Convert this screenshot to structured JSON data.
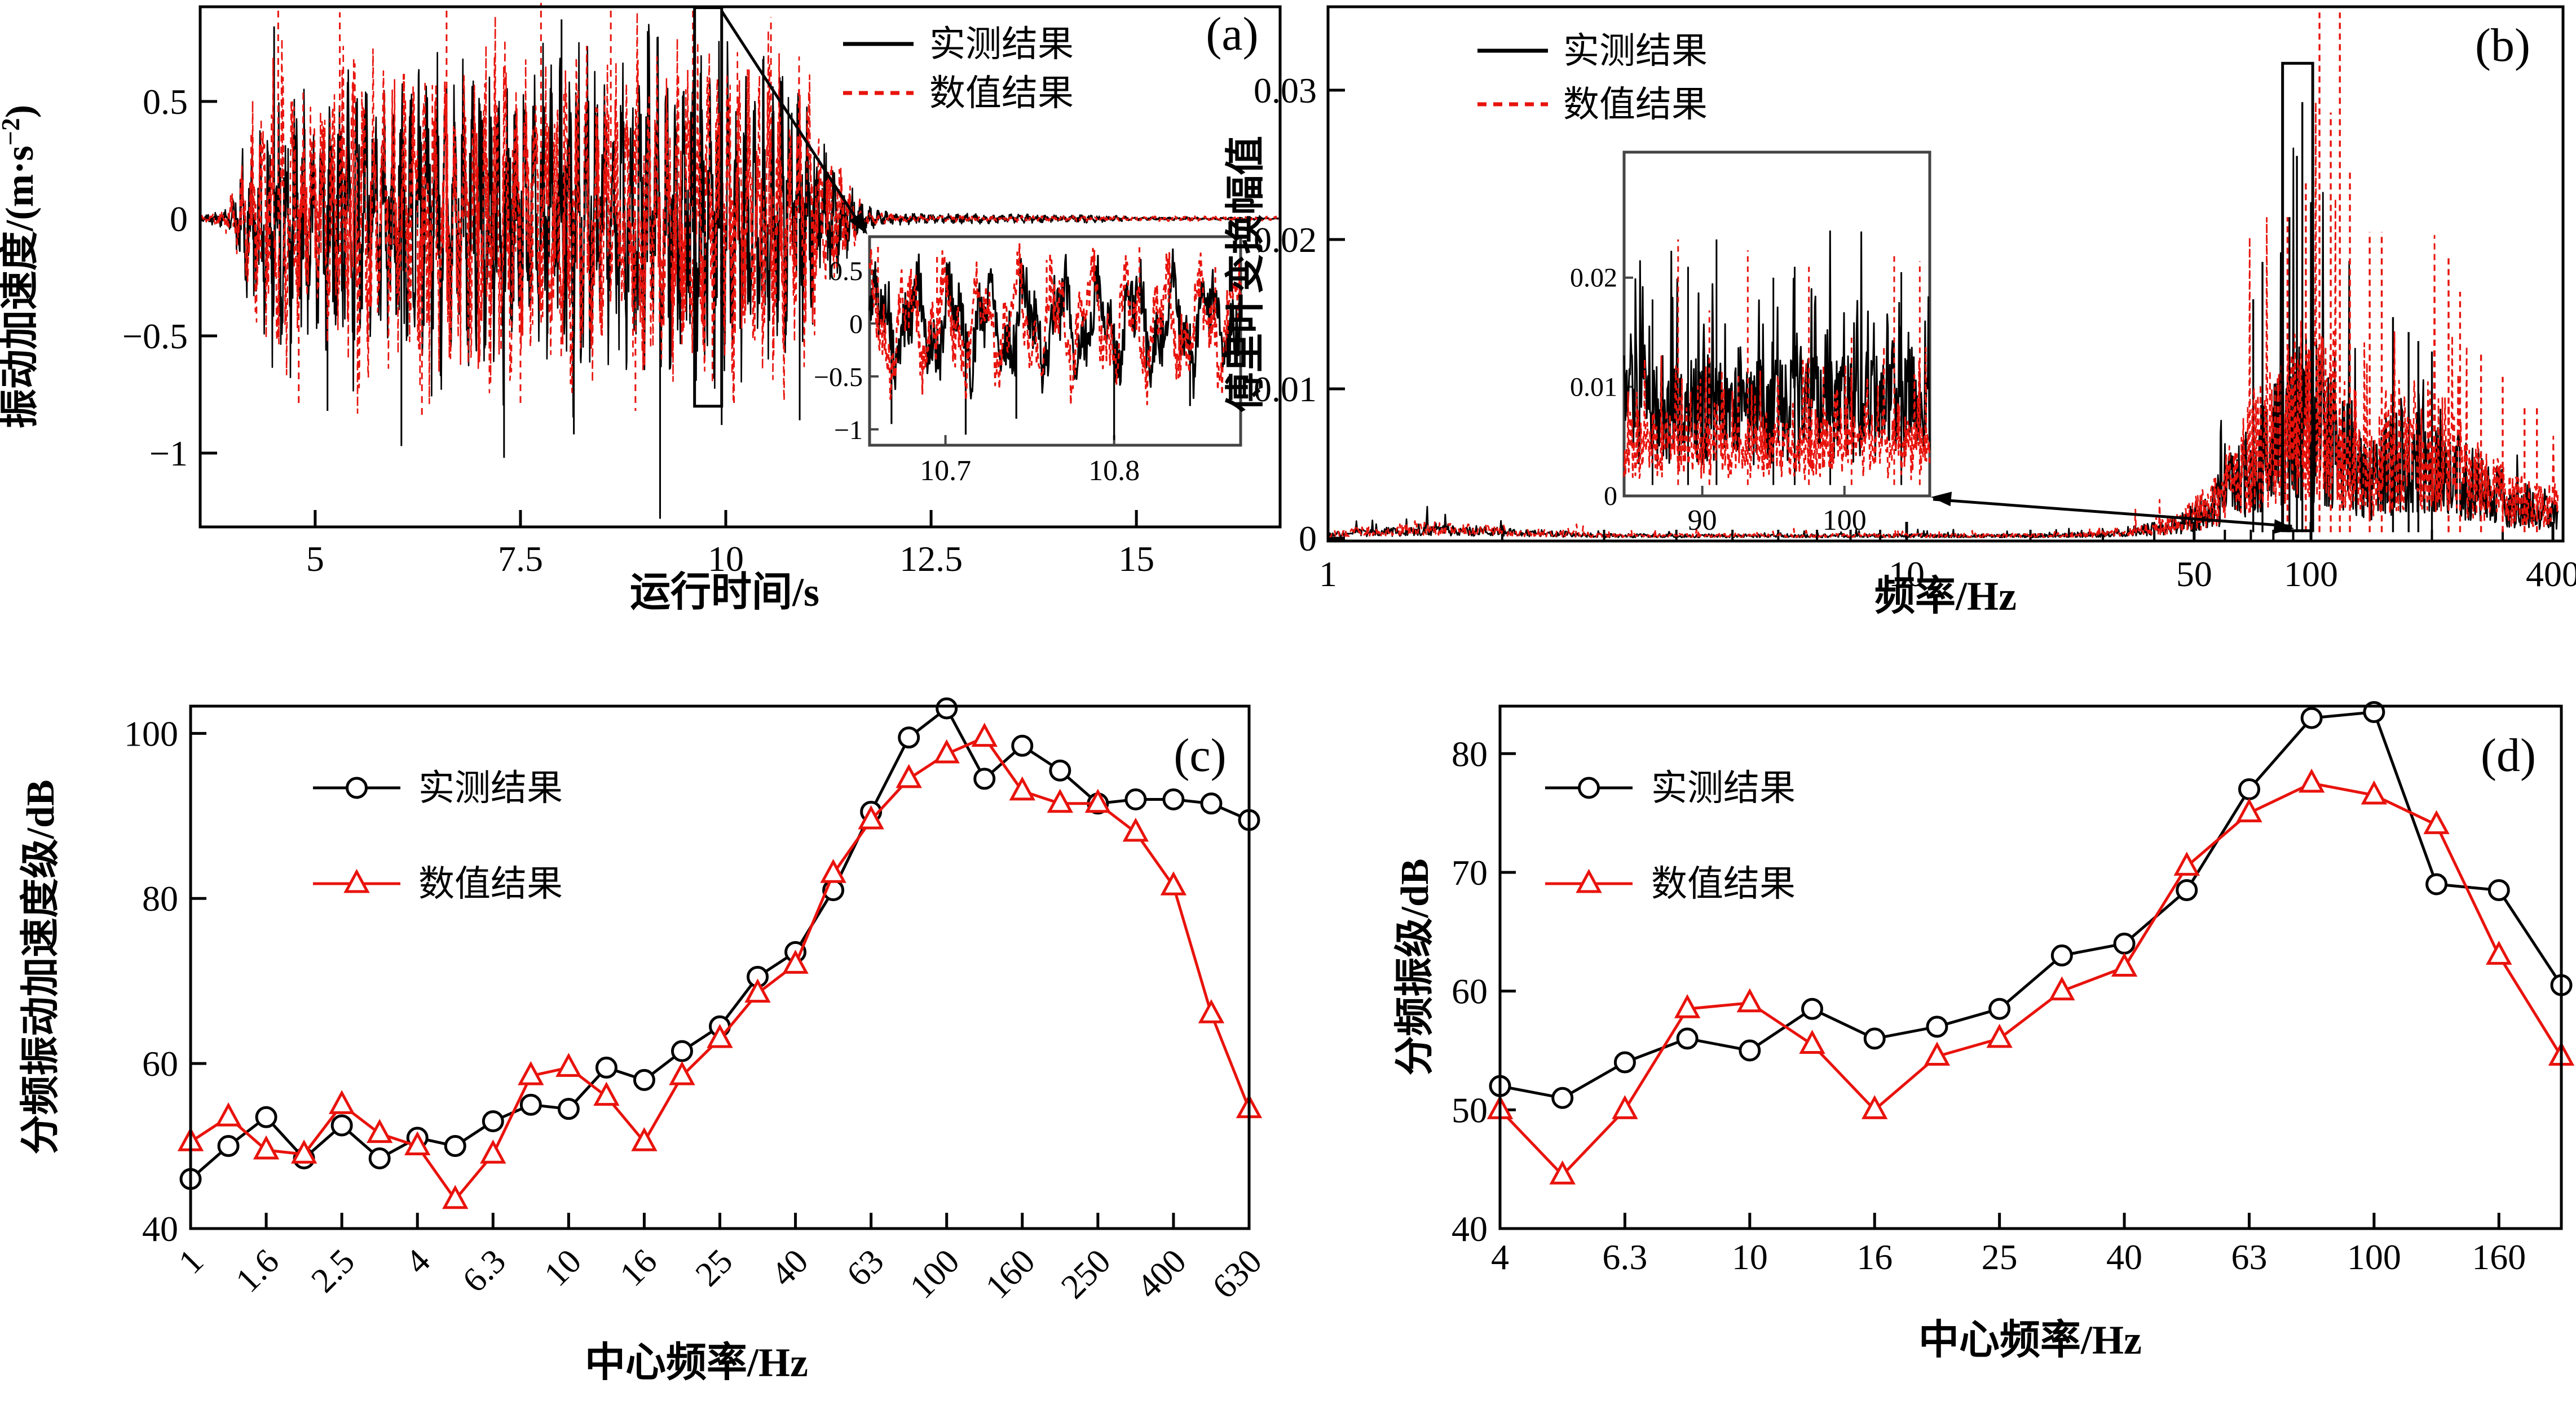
{
  "figure": {
    "background": "#ffffff",
    "color_measured": "#000000",
    "color_numerical": "#e8130c",
    "legend_measured": "实测结果",
    "legend_numerical": "数值结果"
  },
  "chart_data": [
    {
      "id": "a",
      "type": "line",
      "panel_letter": "(a)",
      "xlabel": "运行时间/s",
      "ylabel_main": "振动加速度/(m·s",
      "ylabel_sup": "−2",
      "ylabel_close": ")",
      "xlim": [
        3.6,
        16.75
      ],
      "ylim": [
        -1.315,
        0.9
      ],
      "xticks": [
        5,
        7.5,
        10,
        12.5,
        15
      ],
      "yticks": [
        0.5,
        0,
        -0.5,
        -1
      ],
      "legend": [
        "实测结果",
        "数值结果"
      ],
      "series_styles": [
        {
          "name": "实测结果",
          "style": "solid",
          "color": "#000000"
        },
        {
          "name": "数值结果",
          "style": "dashed",
          "color": "#e8130c"
        }
      ],
      "envelope_measured": [
        [
          3.6,
          0.01
        ],
        [
          3.95,
          0.04
        ],
        [
          4.25,
          0.38
        ],
        [
          4.6,
          0.58
        ],
        [
          5.0,
          0.45
        ],
        [
          5.45,
          0.6
        ],
        [
          5.85,
          0.47
        ],
        [
          6.3,
          0.63
        ],
        [
          6.75,
          0.49
        ],
        [
          7.2,
          0.62
        ],
        [
          7.65,
          0.5
        ],
        [
          8.1,
          0.66
        ],
        [
          8.55,
          0.52
        ],
        [
          9.0,
          0.68
        ],
        [
          9.45,
          0.55
        ],
        [
          9.9,
          0.64
        ],
        [
          10.3,
          0.52
        ],
        [
          10.7,
          0.6
        ],
        [
          11.0,
          0.48
        ],
        [
          11.35,
          0.2
        ],
        [
          11.7,
          0.05
        ],
        [
          12.1,
          0.02
        ],
        [
          14.5,
          0.015
        ],
        [
          15.0,
          0.006
        ],
        [
          16.75,
          0.005
        ]
      ],
      "envelope_numerical": [
        [
          3.6,
          0.01
        ],
        [
          3.95,
          0.05
        ],
        [
          4.25,
          0.4
        ],
        [
          4.6,
          0.61
        ],
        [
          5.0,
          0.47
        ],
        [
          5.45,
          0.63
        ],
        [
          5.85,
          0.49
        ],
        [
          6.3,
          0.66
        ],
        [
          6.75,
          0.51
        ],
        [
          7.2,
          0.65
        ],
        [
          7.65,
          0.52
        ],
        [
          8.1,
          0.69
        ],
        [
          8.55,
          0.55
        ],
        [
          9.0,
          0.71
        ],
        [
          9.45,
          0.58
        ],
        [
          9.9,
          0.67
        ],
        [
          10.3,
          0.55
        ],
        [
          10.7,
          0.63
        ],
        [
          11.0,
          0.5
        ],
        [
          11.35,
          0.22
        ],
        [
          11.7,
          0.03
        ],
        [
          12.2,
          0.012
        ],
        [
          16.75,
          0.008
        ]
      ],
      "spikes_measured": [
        [
          5.15,
          -0.82
        ],
        [
          6.05,
          -0.97
        ],
        [
          7.3,
          -1.02
        ],
        [
          8.15,
          -0.92
        ],
        [
          9.2,
          -1.28
        ],
        [
          9.95,
          -0.88
        ],
        [
          10.9,
          -0.86
        ],
        [
          4.5,
          0.82
        ],
        [
          8.0,
          0.85
        ],
        [
          9.05,
          0.8
        ]
      ],
      "spikes_numerical": [
        [
          4.55,
          0.9
        ],
        [
          5.3,
          0.88
        ],
        [
          6.6,
          0.9
        ],
        [
          7.75,
          0.92
        ],
        [
          8.6,
          0.9
        ],
        [
          9.6,
          0.9
        ],
        [
          10.55,
          0.86
        ],
        [
          4.8,
          -0.8
        ],
        [
          6.3,
          -0.85
        ],
        [
          7.5,
          -0.8
        ],
        [
          8.9,
          -0.82
        ],
        [
          10.1,
          -0.8
        ]
      ],
      "carrier_hz": [
        9.3,
        8.1
      ],
      "zoom_box": {
        "t": [
          9.62,
          9.95
        ],
        "a": [
          -0.8,
          0.9
        ]
      },
      "inset": {
        "tlim": [
          10.655,
          10.875
        ],
        "alim": [
          -1.15,
          0.82
        ],
        "xticks": [
          10.7,
          10.8
        ],
        "yticks": [
          0.5,
          0,
          -0.5,
          -1
        ],
        "dips_measured": [
          [
            10.668,
            -0.95
          ],
          [
            10.712,
            -1.05
          ],
          [
            10.742,
            -0.9
          ],
          [
            10.8,
            -1.1
          ],
          [
            10.845,
            -0.78
          ]
        ],
        "peaks_numerical": [
          [
            10.66,
            0.75
          ],
          [
            10.695,
            0.65
          ],
          [
            10.76,
            0.6
          ],
          [
            10.815,
            0.72
          ],
          [
            10.86,
            0.55
          ]
        ]
      }
    },
    {
      "id": "b",
      "type": "line",
      "panel_letter": "(b)",
      "xlabel": "频率/Hz",
      "ylabel": "傅里叶变换幅值",
      "xscale": "log",
      "xlim": [
        1,
        410
      ],
      "ylim": [
        0,
        0.0357
      ],
      "xticks": [
        1,
        10,
        50,
        100,
        400
      ],
      "minor_xticks": [
        2,
        3,
        4,
        5,
        6,
        7,
        8,
        9,
        20,
        30,
        40,
        60,
        70,
        80,
        90,
        200,
        300
      ],
      "yticks": [
        0,
        0.01,
        0.02,
        0.03
      ],
      "x_anchor_fractions": [
        [
          1,
          0
        ],
        [
          10,
          0.4685
        ],
        [
          50,
          0.7013
        ],
        [
          100,
          0.7959
        ],
        [
          400,
          0.9918
        ],
        [
          420,
          1.0
        ]
      ],
      "legend": [
        "实测结果",
        "数值结果"
      ],
      "envelope_measured": [
        [
          1,
          0.0004
        ],
        [
          1.5,
          0.0009
        ],
        [
          2,
          0.0006
        ],
        [
          3,
          0.00025
        ],
        [
          20,
          0.00025
        ],
        [
          30,
          0.0004
        ],
        [
          45,
          0.0012
        ],
        [
          55,
          0.003
        ],
        [
          62,
          0.005
        ],
        [
          70,
          0.008
        ],
        [
          80,
          0.009
        ],
        [
          90,
          0.011
        ],
        [
          100,
          0.012
        ],
        [
          110,
          0.0105
        ],
        [
          120,
          0.009
        ],
        [
          130,
          0.0075
        ],
        [
          140,
          0.006
        ],
        [
          155,
          0.0075
        ],
        [
          170,
          0.0085
        ],
        [
          185,
          0.0085
        ],
        [
          200,
          0.008
        ],
        [
          215,
          0.0075
        ],
        [
          230,
          0.0065
        ],
        [
          250,
          0.0055
        ],
        [
          280,
          0.0045
        ],
        [
          320,
          0.0035
        ],
        [
          360,
          0.003
        ],
        [
          410,
          0.0028
        ]
      ],
      "numerical_scale": 1.12,
      "main_peaks_measured": [
        [
          95,
          0.0292
        ],
        [
          92,
          0.0256
        ],
        [
          88,
          0.0215
        ],
        [
          100,
          0.0225
        ],
        [
          75,
          0.0185
        ],
        [
          71,
          0.016
        ],
        [
          160,
          0.0148
        ],
        [
          175,
          0.0138
        ],
        [
          185,
          0.0132
        ],
        [
          200,
          0.0125
        ]
      ],
      "main_peaks_numerical": [
        [
          105,
          0.0352
        ],
        [
          118,
          0.0352
        ],
        [
          112,
          0.0285
        ],
        [
          97,
          0.024
        ],
        [
          125,
          0.0245
        ],
        [
          87,
          0.0215
        ],
        [
          140,
          0.0205
        ],
        [
          150,
          0.0205
        ],
        [
          220,
          0.019
        ],
        [
          235,
          0.0165
        ],
        [
          265,
          0.0125
        ],
        [
          300,
          0.0108
        ],
        [
          340,
          0.009
        ],
        [
          365,
          0.0088
        ]
      ],
      "zoom_box": {
        "f": [
          84.5,
          101
        ],
        "v": [
          0.0005,
          0.0318
        ]
      },
      "inset": {
        "flim": [
          84.5,
          106
        ],
        "vlim": [
          0,
          0.0315
        ],
        "xticks": [
          90,
          100
        ],
        "yticks": [
          0,
          0.01,
          0.02
        ],
        "spikes_measured": [
          [
            86.5,
            0.018
          ],
          [
            89,
            0.021
          ],
          [
            91,
            0.0235
          ],
          [
            95,
            0.02
          ],
          [
            96.5,
            0.021
          ],
          [
            99,
            0.0185
          ],
          [
            104,
            0.0205
          ]
        ],
        "spikes_numerical": [
          [
            88.3,
            0.0235
          ],
          [
            90.5,
            0.017
          ],
          [
            93.2,
            0.0225
          ],
          [
            97.5,
            0.021
          ],
          [
            100.5,
            0.0145
          ],
          [
            103.5,
            0.022
          ],
          [
            105.3,
            0.0215
          ]
        ]
      }
    },
    {
      "id": "c",
      "type": "line-markers",
      "panel_letter": "(c)",
      "xlabel": "中心频率/Hz",
      "ylabel": "分频振动加速度级/dB",
      "categories": [
        1,
        1.25,
        1.6,
        2,
        2.5,
        3.15,
        4,
        5,
        6.3,
        8,
        10,
        12.5,
        16,
        20,
        25,
        31.5,
        40,
        50,
        63,
        80,
        100,
        125,
        160,
        200,
        250,
        315,
        400,
        500,
        630
      ],
      "xtick_labels": [
        "1",
        "1.6",
        "2.5",
        "4",
        "6.3",
        "10",
        "16",
        "25",
        "40",
        "63",
        "100",
        "160",
        "250",
        "400",
        "630"
      ],
      "rotated_xticks": true,
      "ylim": [
        40,
        103.3
      ],
      "yticks": [
        40,
        60,
        80,
        100
      ],
      "series": [
        {
          "name": "实测结果",
          "marker": "circle",
          "color": "#000000",
          "values": [
            46,
            50,
            53.5,
            48.5,
            52.5,
            48.5,
            51,
            50,
            53,
            55,
            54.5,
            59.5,
            58,
            61.5,
            64.5,
            70.5,
            73.5,
            81,
            90.5,
            99.5,
            104.5,
            94.5,
            98.5,
            95.5,
            91.5,
            92,
            92,
            91.5,
            89.5
          ]
        },
        {
          "name": "数值结果",
          "marker": "triangle",
          "color": "#e8130c",
          "values": [
            50.5,
            53.5,
            49.5,
            49,
            55,
            51.5,
            50,
            43.5,
            49,
            58.5,
            59.5,
            56,
            50.5,
            58.5,
            63,
            68.5,
            72,
            83,
            89.5,
            94.5,
            97.5,
            99.5,
            93,
            91.5,
            91.5,
            88,
            81.5,
            66,
            54.5
          ]
        }
      ]
    },
    {
      "id": "d",
      "type": "line-markers",
      "panel_letter": "(d)",
      "xlabel": "中心频率/Hz",
      "ylabel": "分频振级/dB",
      "categories": [
        4,
        5,
        6.3,
        8,
        10,
        12.5,
        16,
        20,
        25,
        31.5,
        40,
        50,
        63,
        80,
        100,
        125,
        160,
        200
      ],
      "xtick_labels": [
        "4",
        "6.3",
        "10",
        "16",
        "25",
        "40",
        "63",
        "100",
        "160"
      ],
      "rotated_xticks": false,
      "ylim": [
        40,
        84
      ],
      "yticks": [
        40,
        50,
        60,
        70,
        80
      ],
      "series": [
        {
          "name": "实测结果",
          "marker": "circle",
          "color": "#000000",
          "values": [
            52,
            51,
            54,
            56,
            55,
            58.5,
            56,
            57,
            58.5,
            63,
            64,
            68.5,
            77,
            83,
            83.5,
            69,
            68.5,
            60.5
          ]
        },
        {
          "name": "数值结果",
          "marker": "triangle",
          "color": "#e8130c",
          "values": [
            50,
            44.5,
            50,
            58.5,
            59,
            55.5,
            50,
            54.5,
            56,
            60,
            62,
            70.5,
            75,
            77.5,
            76.5,
            74,
            63,
            54.5
          ]
        }
      ]
    }
  ]
}
